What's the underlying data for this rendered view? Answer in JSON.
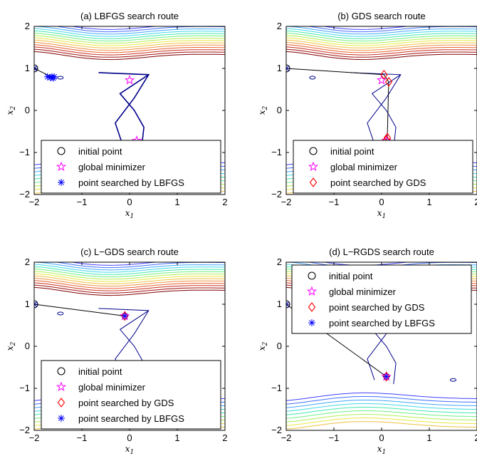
{
  "colors": {
    "contour_levels": [
      "#4040ff",
      "#4070ff",
      "#40a8ff",
      "#40d8e8",
      "#40e8b0",
      "#70f080",
      "#b0f050",
      "#e8e840",
      "#f0c040",
      "#f09040",
      "#e86030",
      "#c83020",
      "#a01010",
      "#800000"
    ],
    "initial": "#000000",
    "global": "#ff00ff",
    "gds": "#ff0000",
    "lbfgs": "#0000ff",
    "route": "#000000",
    "curve": "#00008b"
  },
  "chart_data": [
    {
      "type": "contour",
      "title": "(a) LBFGS search route",
      "xlabel": "x1",
      "ylabel": "x2",
      "xlim": [
        -2,
        2
      ],
      "ylim": [
        -2,
        2
      ],
      "xticks": [
        "−2",
        "−1",
        "0",
        "1",
        "2"
      ],
      "yticks": [
        "2",
        "1",
        "0",
        "−1",
        "−2"
      ],
      "initial_point": [
        -2,
        1
      ],
      "global_minimizers": [
        [
          0,
          0.72
        ],
        [
          0.15,
          -0.72
        ]
      ],
      "gds_points": [],
      "lbfgs_points": [
        [
          -1.72,
          0.8
        ],
        [
          -1.66,
          0.78
        ],
        [
          -1.63,
          0.8
        ],
        [
          -1.6,
          0.77
        ],
        [
          -1.58,
          0.8
        ]
      ],
      "route": [
        [
          -2,
          1
        ],
        [
          -1.62,
          0.79
        ]
      ],
      "legend": {
        "position": "bottom-right",
        "entries": [
          {
            "marker": "circle",
            "label": "initial point"
          },
          {
            "marker": "star",
            "label": "global minimizer"
          },
          {
            "marker": "asterisk",
            "label": "point searched by LBFGS"
          }
        ]
      }
    },
    {
      "type": "contour",
      "title": "(b) GDS search route",
      "xlabel": "x1",
      "ylabel": "x2",
      "xlim": [
        -2,
        2
      ],
      "ylim": [
        -2,
        2
      ],
      "xticks": [
        "−2",
        "−1",
        "0",
        "1",
        "2"
      ],
      "yticks": [
        "2",
        "1",
        "0",
        "−1",
        "−2"
      ],
      "initial_point": [
        -2,
        1
      ],
      "global_minimizers": [
        [
          0,
          0.72
        ],
        [
          0.1,
          -0.72
        ]
      ],
      "gds_points": [
        [
          0.05,
          0.85
        ],
        [
          0.15,
          0.68
        ],
        [
          0.12,
          -0.65
        ],
        [
          0.1,
          -0.7
        ]
      ],
      "lbfgs_points": [],
      "route": [
        [
          -2,
          1
        ],
        [
          0.05,
          0.85
        ],
        [
          0.15,
          0.68
        ],
        [
          0.12,
          -0.65
        ],
        [
          0.1,
          -0.7
        ]
      ],
      "legend": {
        "position": "bottom-right",
        "entries": [
          {
            "marker": "circle",
            "label": "initial point"
          },
          {
            "marker": "star",
            "label": "global minimizer"
          },
          {
            "marker": "diamond",
            "label": "point searched by GDS"
          }
        ]
      }
    },
    {
      "type": "contour",
      "title": "(c) L−GDS search route",
      "xlabel": "x1",
      "ylabel": "x2",
      "xlim": [
        -2,
        2
      ],
      "ylim": [
        -2,
        2
      ],
      "xticks": [
        "−2",
        "−1",
        "0",
        "1",
        "2"
      ],
      "yticks": [
        "2",
        "1",
        "0",
        "−1",
        "−2"
      ],
      "initial_point": [
        -2,
        1
      ],
      "global_minimizers": [
        [
          -0.1,
          0.72
        ]
      ],
      "gds_points": [
        [
          -0.1,
          0.72
        ]
      ],
      "lbfgs_points": [
        [
          -0.1,
          0.72
        ]
      ],
      "route": [
        [
          -2,
          1
        ],
        [
          -0.1,
          0.72
        ]
      ],
      "legend": {
        "position": "bottom-right",
        "entries": [
          {
            "marker": "circle",
            "label": "initial point"
          },
          {
            "marker": "star",
            "label": "global minimizer"
          },
          {
            "marker": "diamond",
            "label": "point searched by GDS"
          },
          {
            "marker": "asterisk",
            "label": "point searched by LBFGS"
          }
        ]
      }
    },
    {
      "type": "contour",
      "title": "(d) L−RGDS search route",
      "xlabel": "x1",
      "ylabel": "x2",
      "xlim": [
        -2,
        2
      ],
      "ylim": [
        -2,
        2
      ],
      "xticks": [
        "−2",
        "−1",
        "0",
        "1",
        "2"
      ],
      "yticks": [
        "2",
        "1",
        "0",
        "−1",
        "−2"
      ],
      "initial_point": [
        -2,
        1
      ],
      "global_minimizers": [
        [
          0.1,
          -0.72
        ]
      ],
      "gds_points": [
        [
          0.1,
          -0.72
        ]
      ],
      "lbfgs_points": [
        [
          0.1,
          -0.72
        ]
      ],
      "route": [
        [
          -2,
          1
        ],
        [
          0.1,
          -0.72
        ]
      ],
      "legend": {
        "position": "top-right",
        "entries": [
          {
            "marker": "circle",
            "label": "initial point"
          },
          {
            "marker": "star",
            "label": "global minimizer"
          },
          {
            "marker": "diamond",
            "label": "point searched by GDS"
          },
          {
            "marker": "asterisk",
            "label": "point searched by LBFGS"
          }
        ]
      }
    }
  ]
}
